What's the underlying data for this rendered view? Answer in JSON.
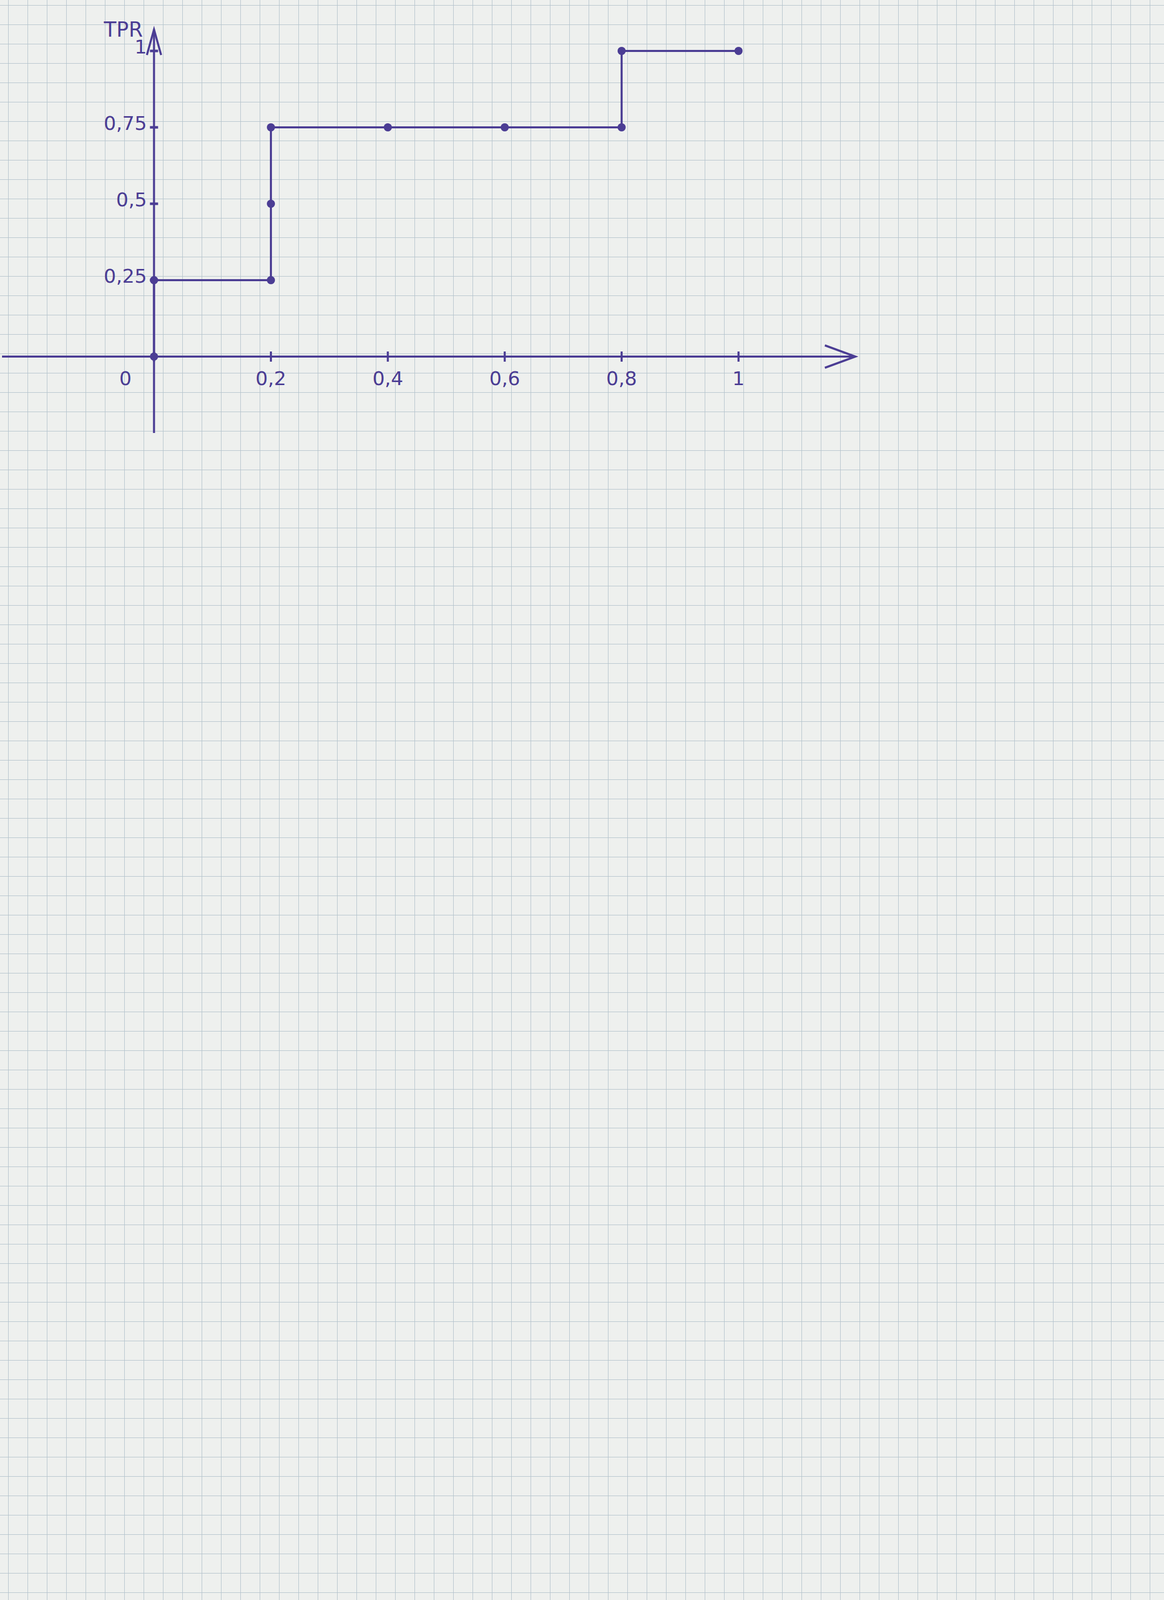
{
  "chart_data": {
    "type": "line",
    "y_label": "TPR",
    "x": [
      0,
      0,
      0.2,
      0.2,
      0.2,
      0.4,
      0.6,
      0.8,
      0.8,
      1
    ],
    "values": [
      0,
      0.25,
      0.25,
      0.5,
      0.75,
      0.75,
      0.75,
      0.75,
      1,
      1
    ],
    "color": "#4b3d94",
    "marker": "circle",
    "line_style": "solid",
    "xlim": [
      -0.26,
      1.2
    ],
    "ylim": [
      -0.25,
      1.07
    ],
    "xticks": [
      0,
      {
        "value": 0.2,
        "label": "0,2"
      },
      {
        "value": 0.4,
        "label": "0,4"
      },
      {
        "value": 0.6,
        "label": "0,6"
      },
      {
        "value": 0.8,
        "label": "0,8"
      },
      1
    ],
    "yticks": [
      {
        "value": 0.25,
        "label": "0,25"
      },
      {
        "value": 0.5,
        "label": "0,5"
      },
      {
        "value": 0.75,
        "label": "0,75"
      },
      1
    ],
    "grid": false
  }
}
